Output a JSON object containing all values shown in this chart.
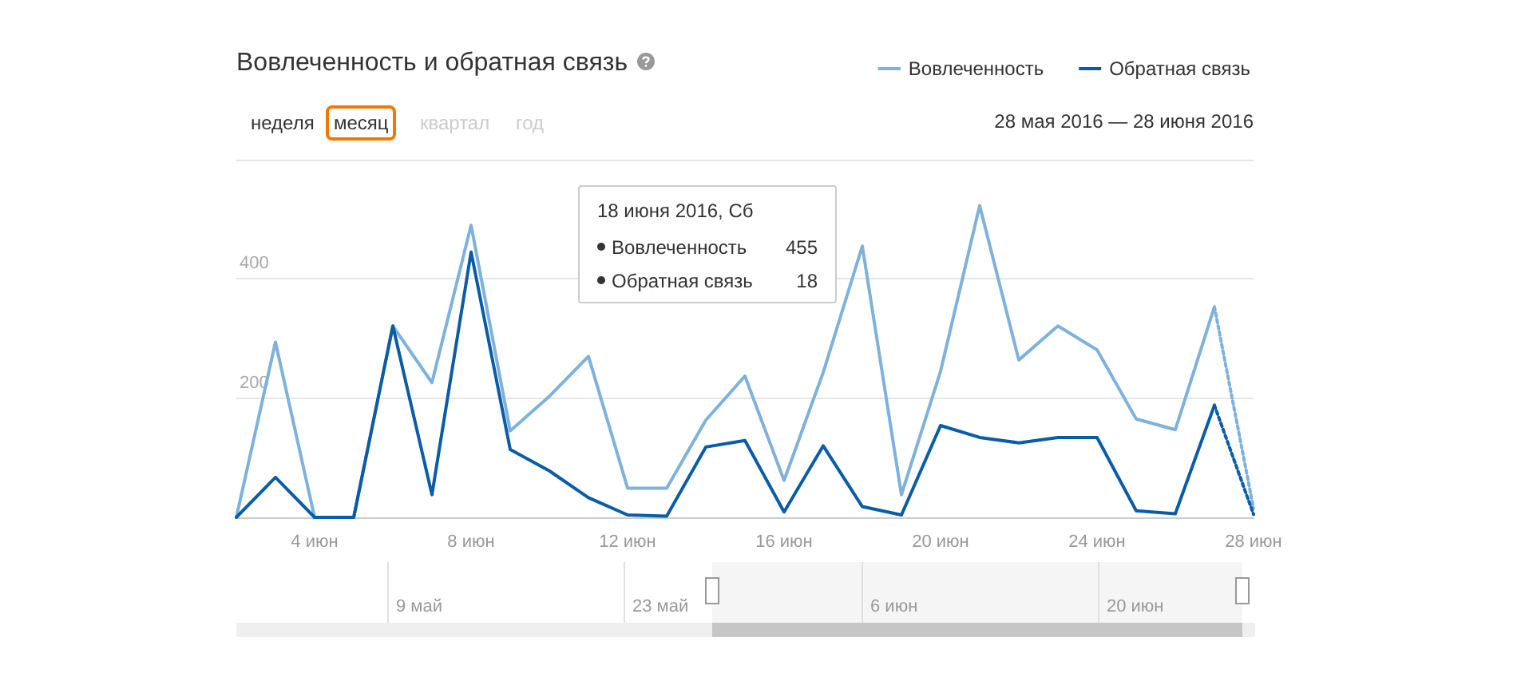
{
  "chart_data": {
    "type": "line",
    "title": "Вовлеченность и обратная связь",
    "legend": "top right",
    "grid": "y",
    "line_style": "solid",
    "categories": [
      null,
      null,
      "4 июн",
      null,
      null,
      null,
      "8 июн",
      null,
      null,
      null,
      "12 июн",
      null,
      null,
      null,
      "16 июн",
      null,
      null,
      null,
      "20 июн",
      null,
      null,
      null,
      "24 июн",
      null,
      null,
      null,
      "28 июн"
    ],
    "ylim": [
      0,
      600
    ],
    "yticks": [
      {
        "value": 0,
        "label": null
      },
      200,
      400,
      {
        "value": 600,
        "label": null
      }
    ],
    "series": [
      {
        "name": "Вовлеченность",
        "color": "#7eb2dc",
        "values": [
          0,
          294,
          0,
          0,
          321,
          226,
          490,
          145,
          203,
          270,
          49,
          49,
          163,
          237,
          62,
          243,
          455,
          38,
          245,
          523,
          264,
          321,
          281,
          165,
          147,
          353,
          null
        ]
      },
      {
        "name": "Обратная связь",
        "color": "#0a5ca8",
        "values": [
          0,
          67,
          0,
          0,
          321,
          38,
          445,
          114,
          78,
          33,
          4,
          2,
          118,
          129,
          9,
          120,
          18,
          4,
          154,
          134,
          125,
          134,
          134,
          11,
          6,
          188,
          null
        ]
      },
      {
        "color": "#7eb2dc",
        "line_style": "dotted",
        "values": [
          null,
          null,
          null,
          null,
          null,
          null,
          null,
          null,
          null,
          null,
          null,
          null,
          null,
          null,
          null,
          null,
          null,
          null,
          null,
          null,
          null,
          null,
          null,
          null,
          null,
          353,
          15
        ]
      },
      {
        "color": "#0a5ca8",
        "line_style": "dotted",
        "values": [
          null,
          null,
          null,
          null,
          null,
          null,
          null,
          null,
          null,
          null,
          null,
          null,
          null,
          null,
          null,
          null,
          null,
          null,
          null,
          null,
          null,
          null,
          null,
          null,
          null,
          188,
          5
        ]
      }
    ],
    "annotations": [
      "неделя",
      "месяц",
      "квартал",
      "год",
      "28 мая 2016 — 28 июня 2016",
      "18 июня 2016, Сб",
      "455",
      "18",
      "9 май",
      "23 май",
      "6 июн",
      "20 июн"
    ]
  }
}
